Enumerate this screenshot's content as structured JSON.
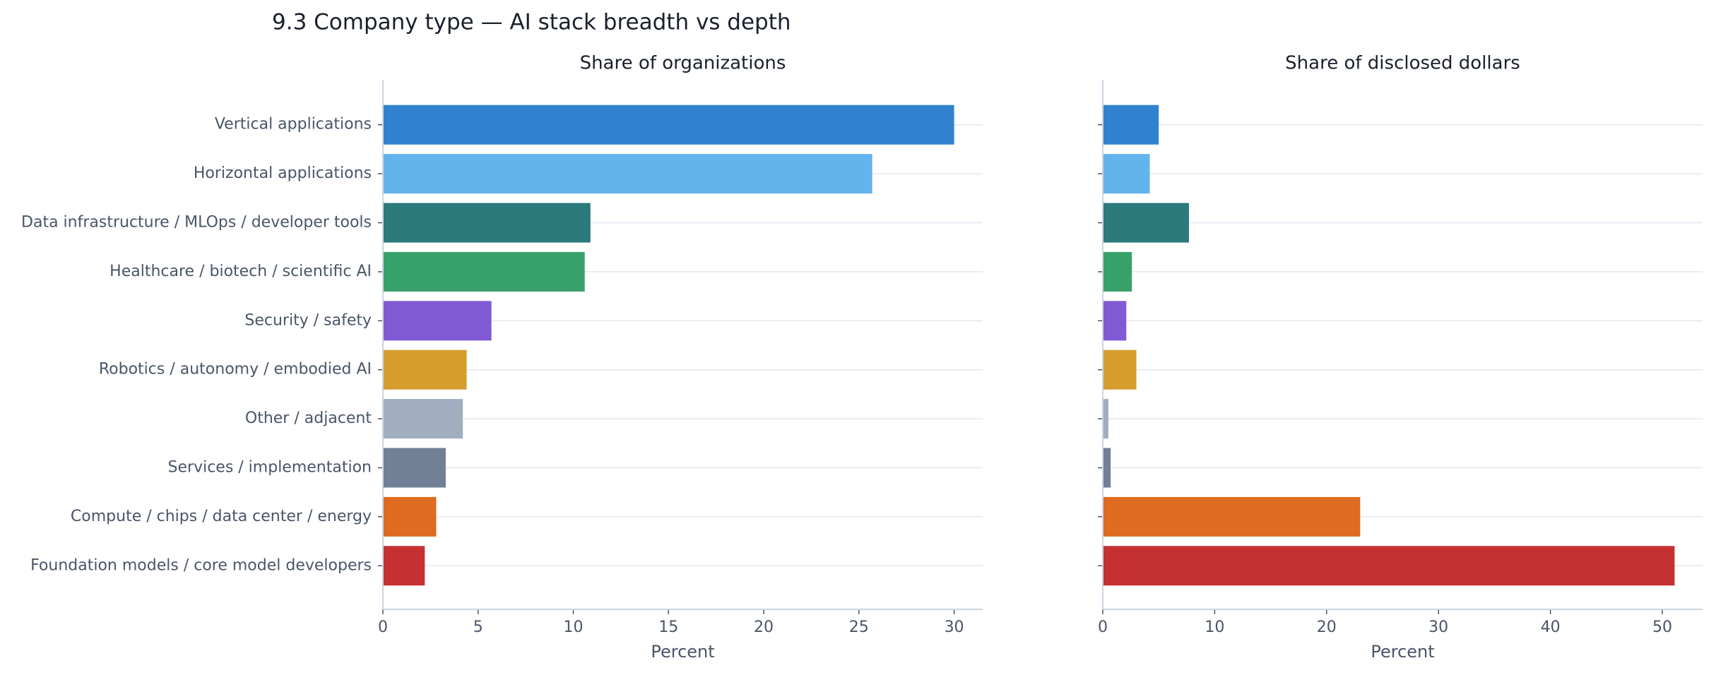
{
  "title": "9.3 Company type — AI stack breadth vs depth",
  "chart_data": [
    {
      "type": "barh",
      "title": "Share of organizations",
      "xlabel": "Percent",
      "categories": [
        "Vertical applications",
        "Horizontal applications",
        "Data infrastructure / MLOps / developer tools",
        "Healthcare / biotech / scientific AI",
        "Security / safety",
        "Robotics / autonomy / embodied AI",
        "Other / adjacent",
        "Services / implementation",
        "Compute / chips / data center / energy",
        "Foundation models / core model developers"
      ],
      "values": [
        30.0,
        25.7,
        10.9,
        10.6,
        5.7,
        4.4,
        4.2,
        3.3,
        2.8,
        2.2
      ],
      "colors": [
        "#3182ce",
        "#63b3ed",
        "#2c7a7b",
        "#38a169",
        "#805ad5",
        "#d69e2e",
        "#a0aec0",
        "#718096",
        "#dd6b20",
        "#c53030"
      ],
      "xlim": [
        0,
        31.5
      ],
      "xticks": [
        0,
        5,
        10,
        15,
        20,
        25,
        30
      ],
      "grid": true
    },
    {
      "type": "barh",
      "title": "Share of disclosed dollars",
      "xlabel": "Percent",
      "values": [
        5.0,
        4.2,
        7.7,
        2.6,
        2.1,
        3.0,
        0.5,
        0.7,
        23.0,
        51.1
      ],
      "colors": [
        "#3182ce",
        "#63b3ed",
        "#2c7a7b",
        "#38a169",
        "#805ad5",
        "#d69e2e",
        "#a0aec0",
        "#718096",
        "#dd6b20",
        "#c53030"
      ],
      "xlim": [
        0,
        53.6
      ],
      "xticks": [
        0,
        10,
        20,
        30,
        40,
        50
      ],
      "grid": true
    }
  ]
}
